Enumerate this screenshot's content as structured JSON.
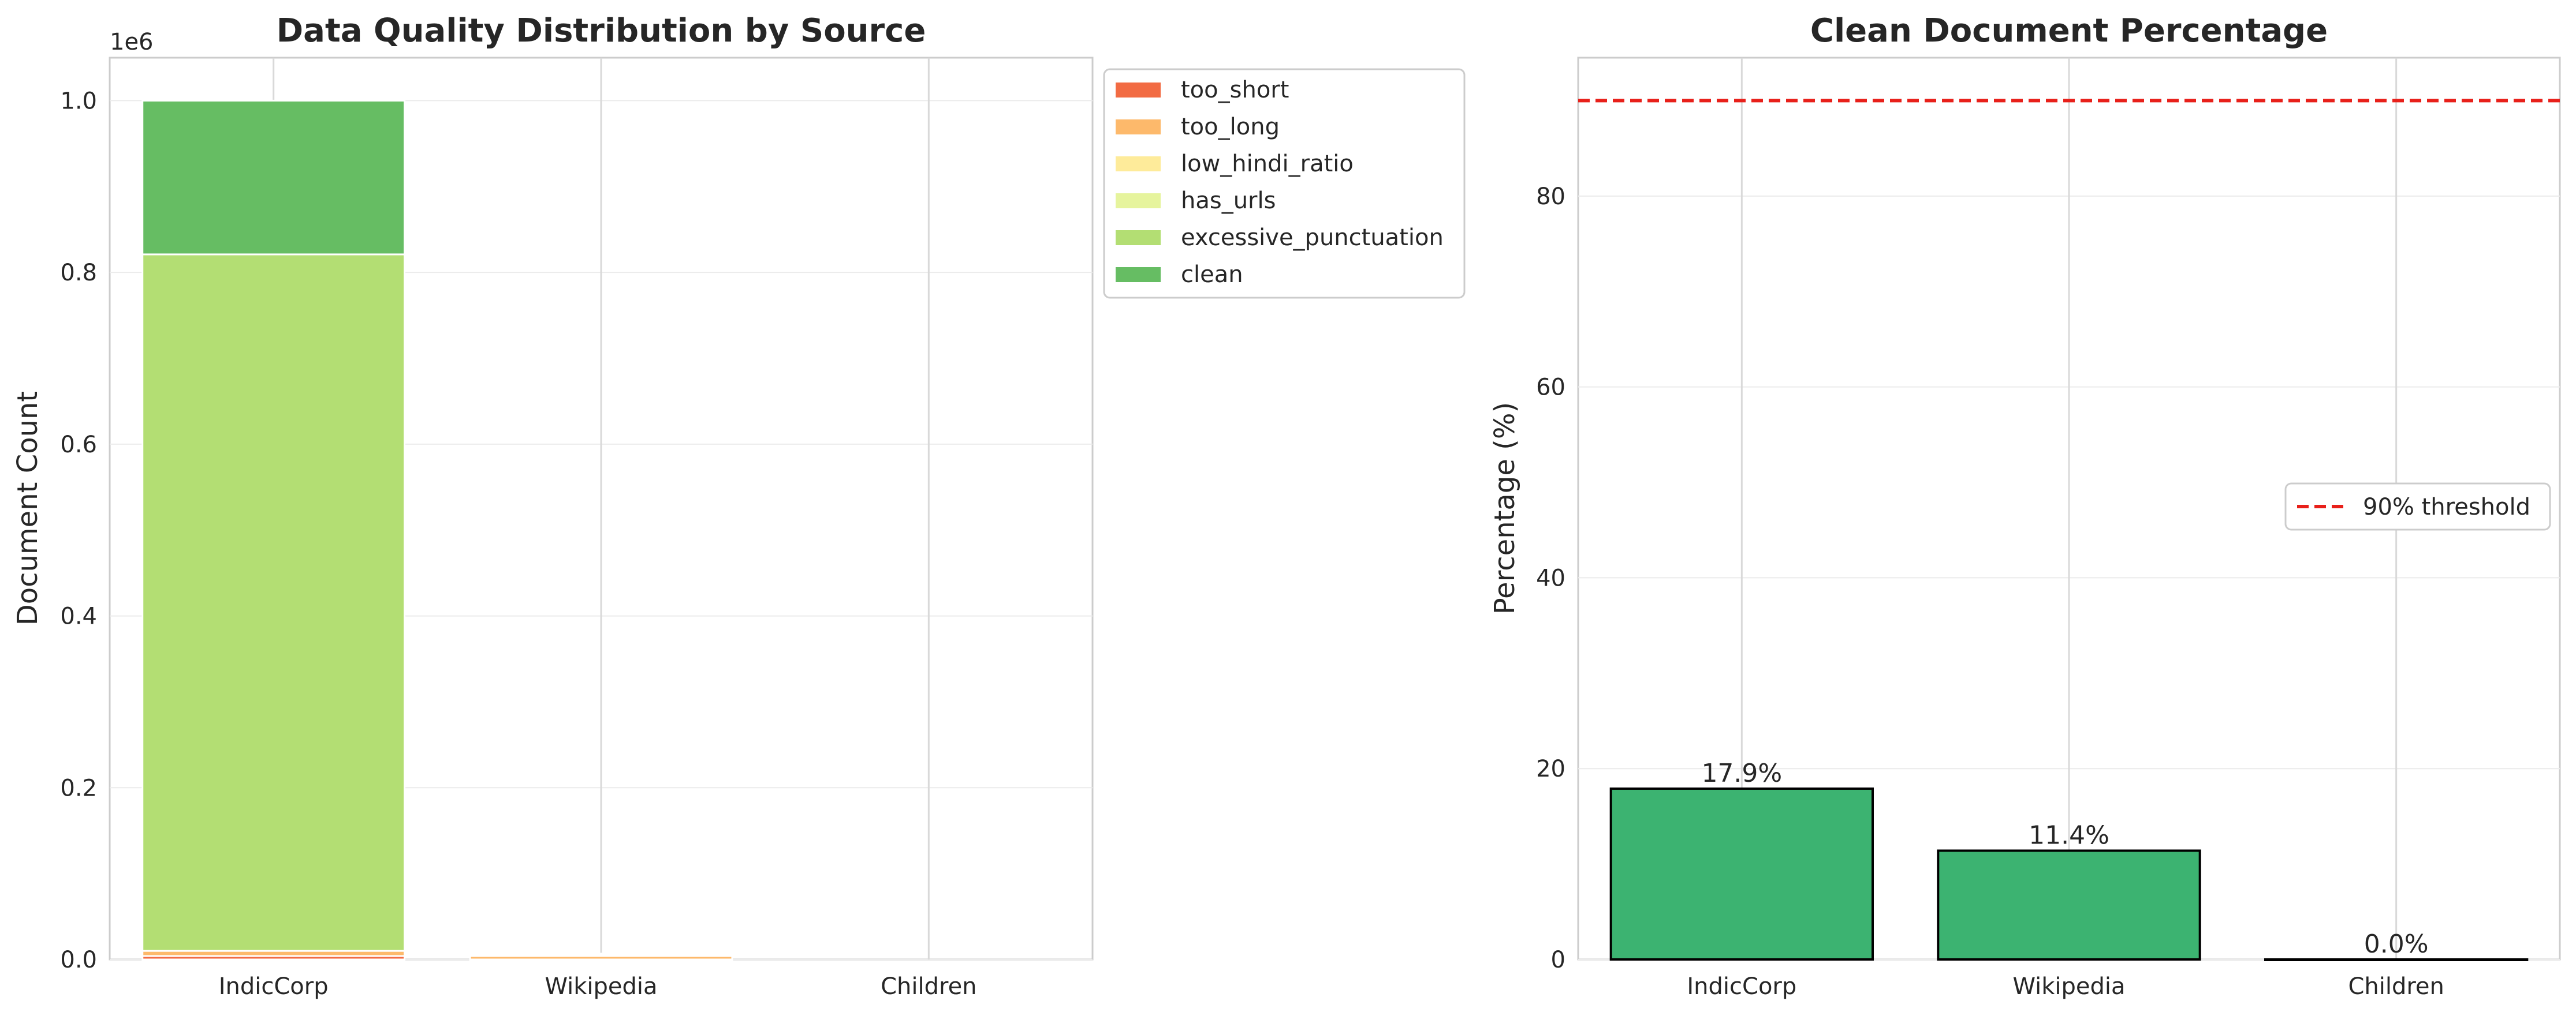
{
  "chart_data": [
    {
      "type": "bar",
      "stacked": true,
      "title": "Data Quality Distribution by Source",
      "xlabel": "",
      "ylabel": "Document Count",
      "y_offset_label": "1e6",
      "categories": [
        "IndicCorp",
        "Wikipedia",
        "Children"
      ],
      "ylim": [
        0,
        1.05
      ],
      "yticks": [
        "0.0",
        "0.2",
        "0.4",
        "0.6",
        "0.8",
        "1.0"
      ],
      "ytick_values": [
        0.0,
        0.2,
        0.4,
        0.6,
        0.8,
        1.0
      ],
      "grid": true,
      "legend_position": "outside-upper-right",
      "series": [
        {
          "name": "too_short",
          "color": "#f26b43",
          "values": [
            0.004,
            0.0,
            0.0
          ]
        },
        {
          "name": "too_long",
          "color": "#fdb96b",
          "values": [
            0.006,
            0.004,
            0.0
          ]
        },
        {
          "name": "low_hindi_ratio",
          "color": "#feeb9a",
          "values": [
            0.0,
            0.002,
            0.0
          ]
        },
        {
          "name": "has_urls",
          "color": "#e6f49d",
          "values": [
            0.0,
            0.0,
            0.0
          ]
        },
        {
          "name": "excessive_punctuation",
          "color": "#b3de73",
          "values": [
            0.811,
            0.0,
            0.0
          ]
        },
        {
          "name": "clean",
          "color": "#66bd63",
          "values": [
            0.179,
            0.0008,
            0.0
          ]
        }
      ]
    },
    {
      "type": "bar",
      "title": "Clean Document Percentage",
      "xlabel": "",
      "ylabel": "Percentage (%)",
      "categories": [
        "IndicCorp",
        "Wikipedia",
        "Children"
      ],
      "values": [
        17.9,
        11.4,
        0.0
      ],
      "value_labels": [
        "17.9%",
        "11.4%",
        "0.0%"
      ],
      "bar_color": "#3cb371",
      "ylim": [
        0,
        94.5
      ],
      "yticks": [
        "0",
        "20",
        "40",
        "60",
        "80"
      ],
      "ytick_values": [
        0,
        20,
        40,
        60,
        80
      ],
      "threshold": {
        "value": 90,
        "label": "90% threshold",
        "color": "#e8201a"
      },
      "grid": true,
      "legend_position": "center-right"
    }
  ]
}
